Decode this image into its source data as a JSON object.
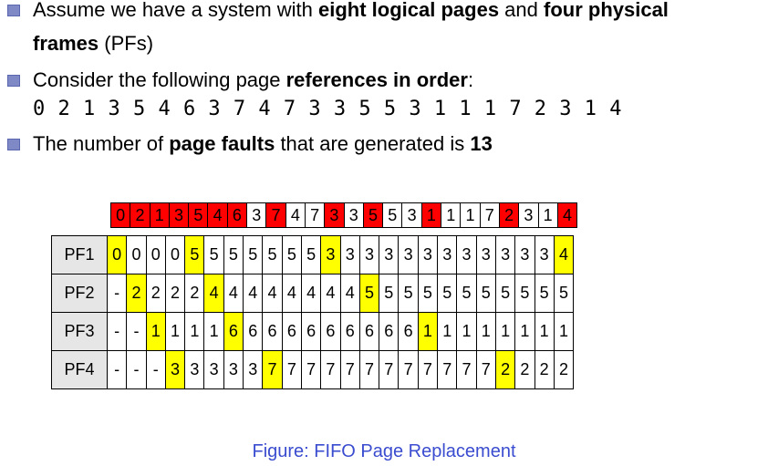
{
  "bullets": {
    "line1_pre": "Assume we have a system with ",
    "line1_b1": "eight logical pages",
    "line1_mid": " and ",
    "line1_b2": "four physical",
    "line1b_b": "frames",
    "line1b_post": " (PFs)",
    "line2_pre": "Consider the following page ",
    "line2_b": "references in order",
    "line2_post": ":",
    "sequence": "0 2 1 3 5 4 6 3 7 4 7 3 3 5 5 3 1 1 1 7 2 3 1 4",
    "line3_pre": "The number of ",
    "line3_b": "page faults",
    "line3_mid": " that are generated is ",
    "line3_b2": "13"
  },
  "references": [
    "0",
    "2",
    "1",
    "3",
    "5",
    "4",
    "6",
    "3",
    "7",
    "4",
    "7",
    "3",
    "3",
    "5",
    "5",
    "3",
    "1",
    "1",
    "1",
    "7",
    "2",
    "3",
    "1",
    "4"
  ],
  "faults": [
    true,
    true,
    true,
    true,
    true,
    true,
    true,
    false,
    true,
    false,
    false,
    true,
    false,
    true,
    false,
    false,
    true,
    false,
    false,
    false,
    true,
    false,
    false,
    true
  ],
  "frames": [
    {
      "label": "PF1",
      "values": [
        "0",
        "0",
        "0",
        "0",
        "5",
        "5",
        "5",
        "5",
        "5",
        "5",
        "5",
        "3",
        "3",
        "3",
        "3",
        "3",
        "3",
        "3",
        "3",
        "3",
        "3",
        "3",
        "3",
        "4"
      ],
      "highlight": [
        0,
        4,
        11,
        23
      ]
    },
    {
      "label": "PF2",
      "values": [
        "-",
        "2",
        "2",
        "2",
        "2",
        "4",
        "4",
        "4",
        "4",
        "4",
        "4",
        "4",
        "4",
        "5",
        "5",
        "5",
        "5",
        "5",
        "5",
        "5",
        "5",
        "5",
        "5",
        "5"
      ],
      "highlight": [
        1,
        5,
        13
      ]
    },
    {
      "label": "PF3",
      "values": [
        "-",
        "-",
        "1",
        "1",
        "1",
        "1",
        "6",
        "6",
        "6",
        "6",
        "6",
        "6",
        "6",
        "6",
        "6",
        "6",
        "1",
        "1",
        "1",
        "1",
        "1",
        "1",
        "1",
        "1"
      ],
      "highlight": [
        2,
        6,
        16
      ]
    },
    {
      "label": "PF4",
      "values": [
        "-",
        "-",
        "-",
        "3",
        "3",
        "3",
        "3",
        "3",
        "7",
        "7",
        "7",
        "7",
        "7",
        "7",
        "7",
        "7",
        "7",
        "7",
        "7",
        "7",
        "2",
        "2",
        "2",
        "2"
      ],
      "highlight": [
        3,
        8,
        20
      ]
    }
  ],
  "caption": {
    "prefix": "Figure:",
    "title": "FIFO Page Replacement"
  },
  "colors": {
    "fault": "#ff0000",
    "replaced": "#ffff00",
    "label_bg": "#e6e6e6",
    "caption": "#3a4ccf",
    "bullet": "#7f89c5"
  }
}
